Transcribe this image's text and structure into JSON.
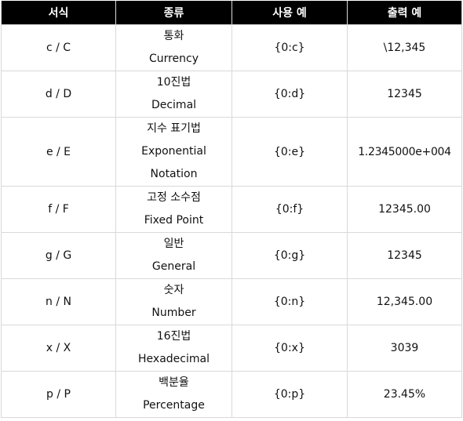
{
  "headers": {
    "format": "서식",
    "kind": "종류",
    "usage": "사용 예",
    "output": "출력 예"
  },
  "rows": [
    {
      "format": "c / C",
      "kind_ko": "통화",
      "kind_en": "Currency",
      "usage": "{0:c}",
      "output": "\\12,345"
    },
    {
      "format": "d / D",
      "kind_ko": "10진법",
      "kind_en": "Decimal",
      "usage": "{0:d}",
      "output": "12345"
    },
    {
      "format": "e / E",
      "kind_ko": "지수 표기법",
      "kind_en": "Exponential",
      "kind_en2": "Notation",
      "usage": "{0:e}",
      "output": "1.2345000e+004"
    },
    {
      "format": "f / F",
      "kind_ko": "고정 소수점",
      "kind_en": "Fixed Point",
      "usage": "{0:f}",
      "output": "12345.00"
    },
    {
      "format": "g / G",
      "kind_ko": "일반",
      "kind_en": "General",
      "usage": "{0:g}",
      "output": "12345"
    },
    {
      "format": "n / N",
      "kind_ko": "숫자",
      "kind_en": "Number",
      "usage": "{0:n}",
      "output": "12,345.00"
    },
    {
      "format": "x / X",
      "kind_ko": "16진법",
      "kind_en": "Hexadecimal",
      "usage": "{0:x}",
      "output": "3039"
    },
    {
      "format": "p / P",
      "kind_ko": "백분율",
      "kind_en": "Percentage",
      "usage": "{0:p}",
      "output": "23.45%"
    }
  ]
}
